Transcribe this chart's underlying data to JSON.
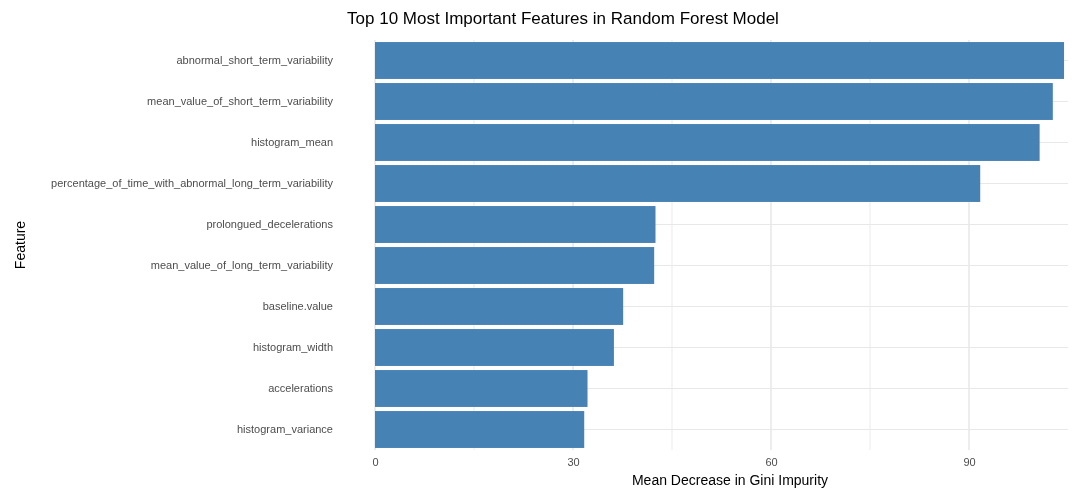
{
  "chart_data": {
    "type": "bar",
    "orientation": "horizontal",
    "title": "Top 10 Most Important Features in Random Forest Model",
    "xlabel": "Mean Decrease in Gini Impurity",
    "ylabel": "Feature",
    "categories": [
      "abnormal_short_term_variability",
      "mean_value_of_short_term_variability",
      "histogram_mean",
      "percentage_of_time_with_abnormal_long_term_variability",
      "prolongued_decelerations",
      "mean_value_of_long_term_variability",
      "baseline.value",
      "histogram_width",
      "accelerations",
      "histogram_variance"
    ],
    "values": [
      104.4,
      102.7,
      100.7,
      91.7,
      42.5,
      42.3,
      37.6,
      36.2,
      32.2,
      31.7
    ],
    "color": "#4682b4",
    "xlim": [
      0,
      105
    ],
    "xticks": [
      0,
      {
        "value": 15,
        "label": null
      },
      30,
      {
        "value": 45,
        "label": null
      },
      60,
      {
        "value": 75,
        "label": null
      },
      90
    ],
    "grid": true
  }
}
